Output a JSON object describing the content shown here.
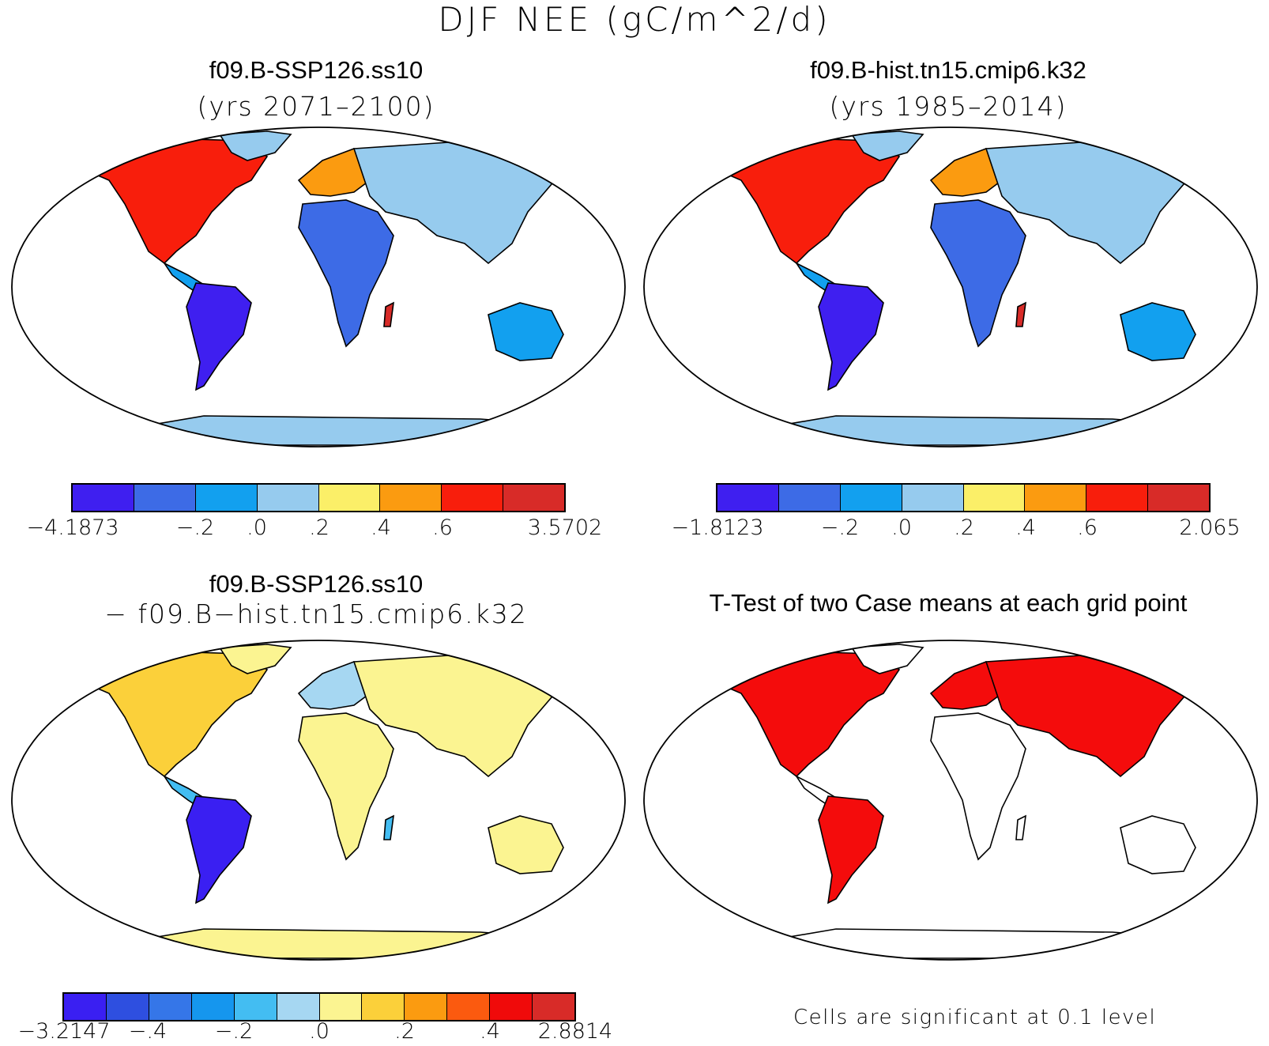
{
  "title": "DJF NEE (gC/m^2/d)",
  "panels": [
    {
      "id": "ssp",
      "title": "f09.B-SSP126.ss10",
      "subtitle": "(yrs 2071–2100)",
      "colorbar": {
        "colors": [
          "#3f1ff0",
          "#3d6be6",
          "#12a0ef",
          "#96cbee",
          "#fbef68",
          "#fb9b10",
          "#f81e0c",
          "#d82b28"
        ],
        "labels": [
          "−4.1873",
          "−.2",
          ".0",
          ".2",
          ".4",
          ".6",
          "3.5702"
        ]
      }
    },
    {
      "id": "hist",
      "title": "f09.B-hist.tn15.cmip6.k32",
      "subtitle": "(yrs 1985–2014)",
      "colorbar": {
        "colors": [
          "#3f1ff0",
          "#3d6be6",
          "#12a0ef",
          "#96cbee",
          "#fbef68",
          "#fb9b10",
          "#f81e0c",
          "#d82b28"
        ],
        "labels": [
          "−1.8123",
          "−.2",
          ".0",
          ".2",
          ".4",
          ".6",
          "2.065"
        ]
      }
    },
    {
      "id": "diff",
      "title": "f09.B-SSP126.ss10",
      "subtitle": "− f09.B−hist.tn15.cmip6.k32",
      "colorbar": {
        "colors": [
          "#3a1ff2",
          "#2e4fe0",
          "#3576e8",
          "#1596ee",
          "#43bdf2",
          "#a6d7f2",
          "#fbf491",
          "#fbd03a",
          "#fb9b10",
          "#fb5a0f",
          "#f00a0a",
          "#d82b28"
        ],
        "labels": [
          "−3.2147",
          "−.4",
          "−.2",
          ".0",
          ".2",
          ".4",
          "2.8814"
        ]
      }
    },
    {
      "id": "ttest",
      "title": "T-Test of two Case means at each grid point",
      "note": "Cells are significant at 0.1 level",
      "sig_color": "#f40c0c"
    }
  ]
}
